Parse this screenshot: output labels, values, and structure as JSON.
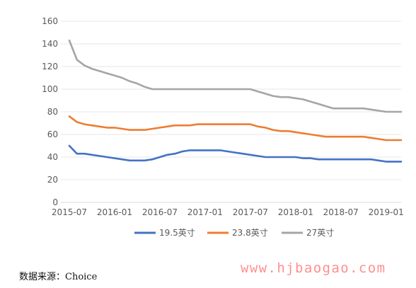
{
  "chart_data": {
    "type": "line",
    "title": "",
    "xlabel": "",
    "ylabel": "",
    "ylim": [
      0,
      160
    ],
    "yticks": [
      "0",
      "20",
      "40",
      "60",
      "80",
      "100",
      "120",
      "140",
      "160"
    ],
    "x_start": "2015-07",
    "x_end": "2019-03",
    "x_tick_labels": [
      "2015-07",
      "2016-01",
      "2016-07",
      "2017-01",
      "2017-07",
      "2018-01",
      "2018-07",
      "2019-01"
    ],
    "legend_position": "bottom",
    "grid": "horizontal",
    "x": [
      "2015-07",
      "2015-08",
      "2015-09",
      "2015-10",
      "2015-11",
      "2015-12",
      "2016-01",
      "2016-02",
      "2016-03",
      "2016-04",
      "2016-05",
      "2016-06",
      "2016-07",
      "2016-08",
      "2016-09",
      "2016-10",
      "2016-11",
      "2016-12",
      "2017-01",
      "2017-02",
      "2017-03",
      "2017-04",
      "2017-05",
      "2017-06",
      "2017-07",
      "2017-08",
      "2017-09",
      "2017-10",
      "2017-11",
      "2017-12",
      "2018-01",
      "2018-02",
      "2018-03",
      "2018-04",
      "2018-05",
      "2018-06",
      "2018-07",
      "2018-08",
      "2018-09",
      "2018-10",
      "2018-11",
      "2018-12",
      "2019-01",
      "2019-02",
      "2019-03"
    ],
    "series": [
      {
        "name": "19.5英寸",
        "color": "#4472C4",
        "values": [
          50,
          43,
          43,
          42,
          41,
          40,
          39,
          38,
          37,
          37,
          37,
          38,
          40,
          42,
          43,
          45,
          46,
          46,
          46,
          46,
          46,
          45,
          44,
          43,
          42,
          41,
          40,
          40,
          40,
          40,
          40,
          39,
          39,
          38,
          38,
          38,
          38,
          38,
          38,
          38,
          38,
          37,
          36,
          36,
          36
        ]
      },
      {
        "name": "23.8英寸",
        "color": "#ED7D31",
        "values": [
          76,
          71,
          69,
          68,
          67,
          66,
          66,
          65,
          64,
          64,
          64,
          65,
          66,
          67,
          68,
          68,
          68,
          69,
          69,
          69,
          69,
          69,
          69,
          69,
          69,
          67,
          66,
          64,
          63,
          63,
          62,
          61,
          60,
          59,
          58,
          58,
          58,
          58,
          58,
          58,
          57,
          56,
          55,
          55,
          55
        ]
      },
      {
        "name": "27英寸",
        "color": "#A5A5A5",
        "values": [
          143,
          126,
          121,
          118,
          116,
          114,
          112,
          110,
          107,
          105,
          102,
          100,
          100,
          100,
          100,
          100,
          100,
          100,
          100,
          100,
          100,
          100,
          100,
          100,
          100,
          98,
          96,
          94,
          93,
          93,
          92,
          91,
          89,
          87,
          85,
          83,
          83,
          83,
          83,
          83,
          82,
          81,
          80,
          80,
          80
        ]
      }
    ]
  },
  "source": "数据来源：Choice",
  "watermark": "www.hjbaogao.com"
}
